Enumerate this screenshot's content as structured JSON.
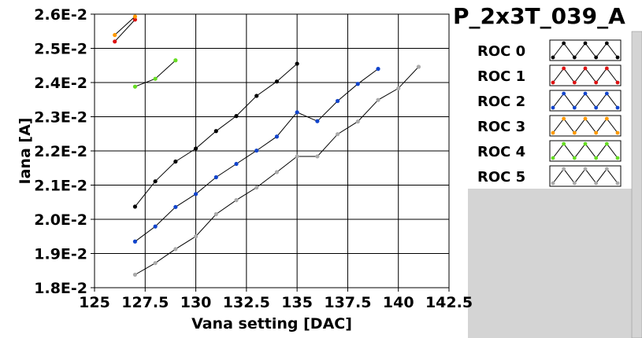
{
  "chart_data": {
    "type": "line",
    "title": "P_2x3T_039_A",
    "xlabel": "Vana setting [DAC]",
    "ylabel": "Iana [A]",
    "xlim": [
      125,
      142.5
    ],
    "ylim": [
      0.018,
      0.026
    ],
    "xticks": [
      125,
      127.5,
      130,
      132.5,
      135,
      137.5,
      140,
      142.5
    ],
    "xtick_labels": [
      "125",
      "127.5",
      "130",
      "132.5",
      "135",
      "137.5",
      "140",
      "142.5"
    ],
    "yticks": [
      0.018,
      0.019,
      0.02,
      0.021,
      0.022,
      0.023,
      0.024,
      0.025,
      0.026
    ],
    "ytick_labels": [
      "1.8E-2",
      "1.9E-2",
      "2.0E-2",
      "2.1E-2",
      "2.2E-2",
      "2.3E-2",
      "2.4E-2",
      "2.5E-2",
      "2.6E-2"
    ],
    "grid": true,
    "legend_position": "right",
    "series": [
      {
        "name": "ROC 0",
        "color": "#000000",
        "x": [
          127,
          128,
          129,
          130,
          131,
          132,
          133,
          134,
          135
        ],
        "y": [
          0.02037,
          0.02111,
          0.02169,
          0.02207,
          0.02258,
          0.02302,
          0.02361,
          0.02403,
          0.02455
        ]
      },
      {
        "name": "ROC 1",
        "color": "#dd1111",
        "x": [
          126,
          127
        ],
        "y": [
          0.0252,
          0.02584
        ]
      },
      {
        "name": "ROC 2",
        "color": "#1144cc",
        "x": [
          127,
          128,
          129,
          130,
          131,
          132,
          133,
          134,
          135,
          136,
          137,
          138,
          139
        ],
        "y": [
          0.01935,
          0.01979,
          0.02036,
          0.02074,
          0.02123,
          0.02162,
          0.02201,
          0.02242,
          0.02313,
          0.02287,
          0.02346,
          0.02396,
          0.0244
        ]
      },
      {
        "name": "ROC 3",
        "color": "#ff9900",
        "x": [
          126,
          127
        ],
        "y": [
          0.02539,
          0.02593
        ]
      },
      {
        "name": "ROC 4",
        "color": "#66dd22",
        "x": [
          127,
          128,
          129
        ],
        "y": [
          0.02388,
          0.02411,
          0.02465
        ]
      },
      {
        "name": "ROC 5",
        "color": "#aaaaaa",
        "x": [
          127,
          128,
          129,
          130,
          131,
          132,
          133,
          134,
          135,
          136,
          137,
          138,
          139,
          140,
          141
        ],
        "y": [
          0.01838,
          0.01872,
          0.01913,
          0.0195,
          0.02015,
          0.02056,
          0.02093,
          0.02138,
          0.02184,
          0.02184,
          0.02249,
          0.02286,
          0.02349,
          0.02383,
          0.02446
        ]
      }
    ]
  }
}
